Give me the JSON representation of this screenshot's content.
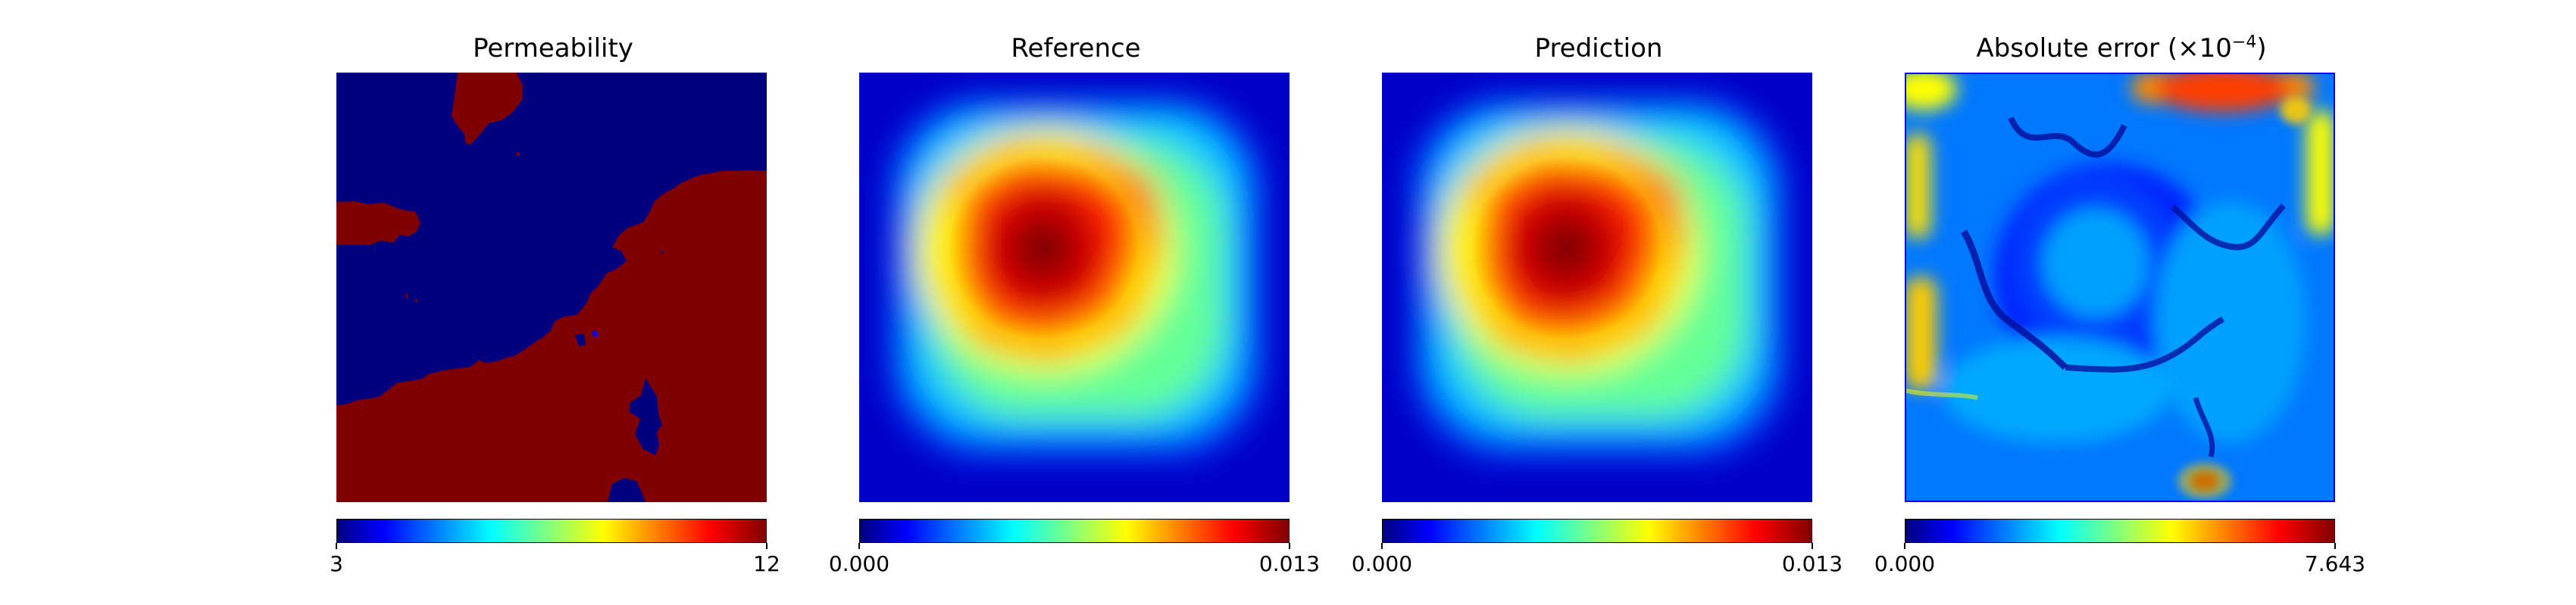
{
  "chart_data": [
    {
      "type": "heatmap",
      "title": "Permeability",
      "field": "permeability",
      "colormap": "jet",
      "grid": "off",
      "axes_visible": false,
      "values_are_binary": true,
      "range": [
        3,
        12
      ],
      "colorbar": {
        "position": "bottom",
        "ticks": [
          "3",
          "12"
        ]
      },
      "regions": [
        {
          "value": 3,
          "description": "upper-left low permeability phase"
        },
        {
          "value": 12,
          "description": "top center and right/lower high permeability phase"
        }
      ]
    },
    {
      "type": "heatmap",
      "title": "Reference",
      "field": "reference",
      "colormap": "jet",
      "grid": "off",
      "axes_visible": false,
      "range": [
        0.0,
        0.013
      ],
      "colorbar": {
        "position": "bottom",
        "ticks": [
          "0.000",
          "0.013"
        ]
      },
      "peak_value": 0.013
    },
    {
      "type": "heatmap",
      "title": "Prediction",
      "field": "prediction",
      "colormap": "jet",
      "grid": "off",
      "axes_visible": false,
      "range": [
        0.0,
        0.013
      ],
      "colorbar": {
        "position": "bottom",
        "ticks": [
          "0.000",
          "0.013"
        ]
      },
      "peak_value": 0.013
    },
    {
      "type": "heatmap",
      "title": "Absolute error (×10",
      "title_exponent": "−4",
      "title_suffix": ")",
      "field": "absolute_error",
      "colormap": "jet",
      "grid": "off",
      "axes_visible": false,
      "range": [
        0.0,
        7.643
      ],
      "colorbar": {
        "position": "bottom",
        "ticks": [
          "0.000",
          "7.643"
        ]
      },
      "highlights": [
        {
          "area": "bottom",
          "value": 7.643
        }
      ]
    }
  ]
}
